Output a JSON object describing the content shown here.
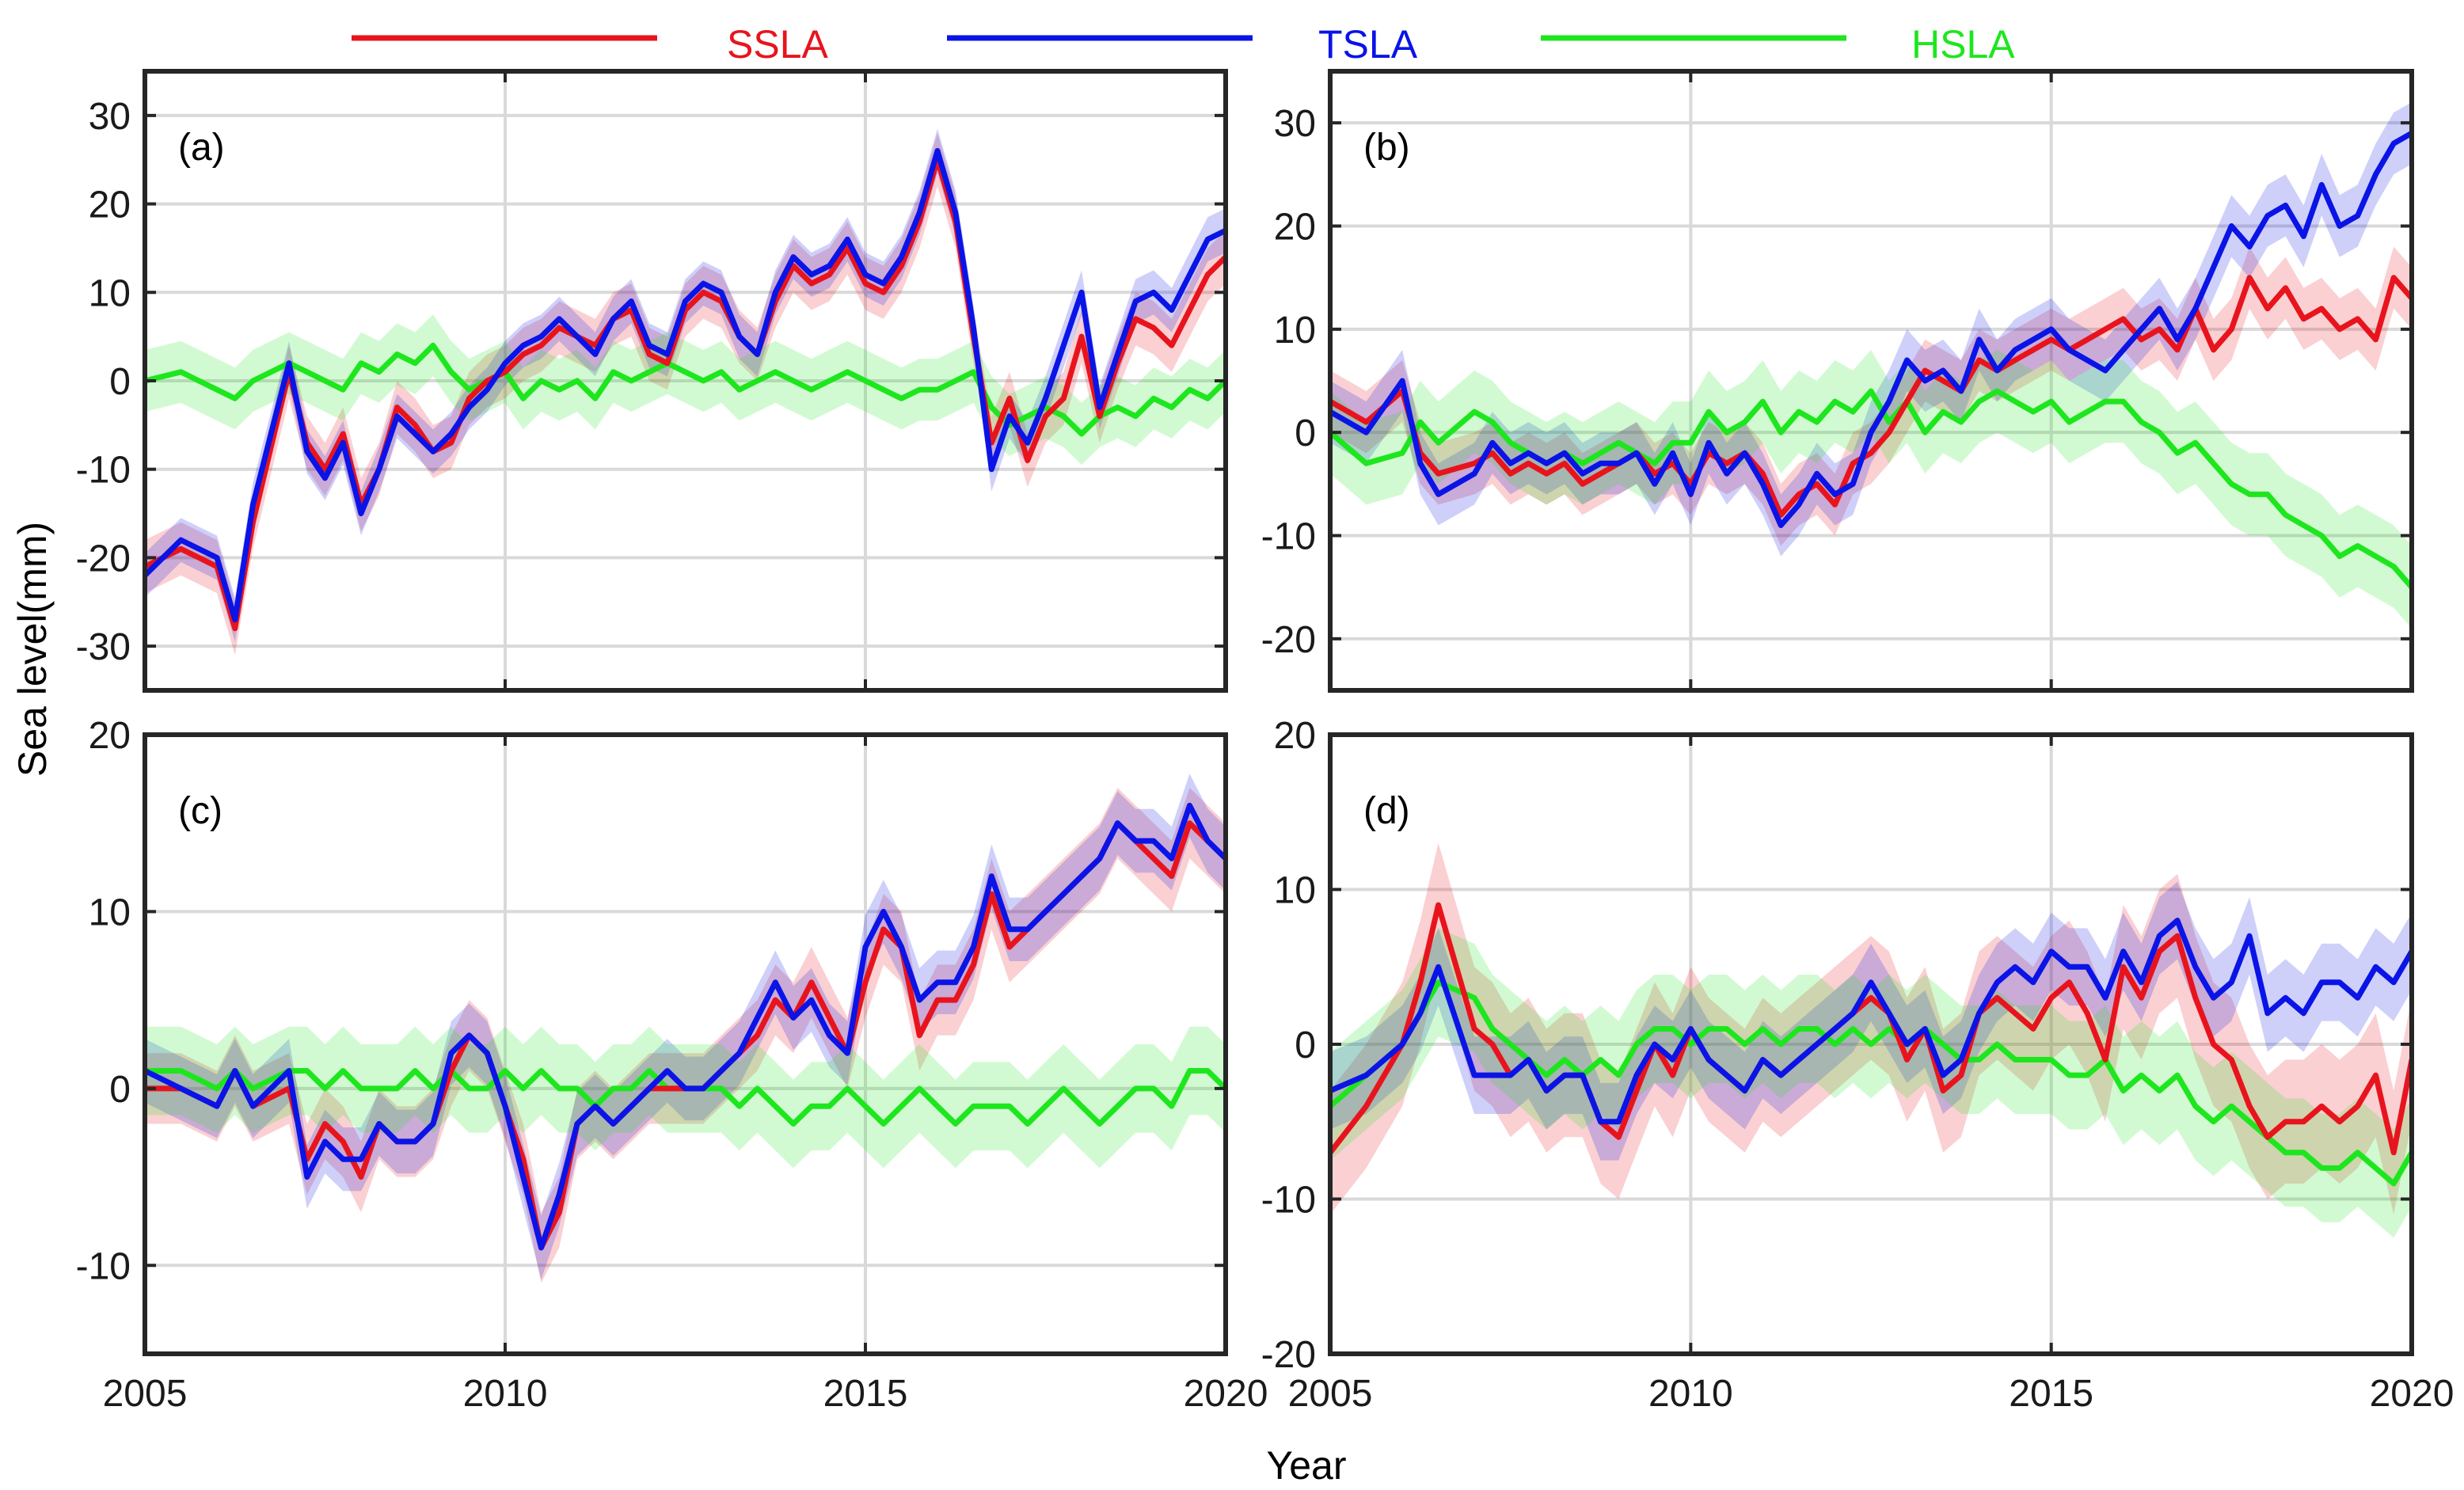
{
  "figure": {
    "xlabel": "Year",
    "ylabel": "Sea level(mm)"
  },
  "legend": [
    {
      "key": "SSLA",
      "label": "SSLA",
      "color": "#e8141d"
    },
    {
      "key": "TSLA",
      "label": "TSLA",
      "color": "#0a14e6"
    },
    {
      "key": "HSLA",
      "label": "HSLA",
      "color": "#1ee61e"
    }
  ],
  "chart_data": [
    {
      "type": "line",
      "panel": "(a)",
      "xlim": [
        2005,
        2020
      ],
      "ylim": [
        -35,
        35
      ],
      "xticks": [
        2005,
        2010,
        2015,
        2020
      ],
      "yticks": [
        -30,
        -20,
        -10,
        0,
        10,
        20,
        30
      ],
      "x": [
        2005.0,
        2005.5,
        2006.0,
        2006.25,
        2006.5,
        2007.0,
        2007.25,
        2007.5,
        2007.75,
        2008.0,
        2008.25,
        2008.5,
        2008.75,
        2009.0,
        2009.25,
        2009.5,
        2009.75,
        2010.0,
        2010.25,
        2010.5,
        2010.75,
        2011.0,
        2011.25,
        2011.5,
        2011.75,
        2012.0,
        2012.25,
        2012.5,
        2012.75,
        2013.0,
        2013.25,
        2013.5,
        2013.75,
        2014.0,
        2014.25,
        2014.5,
        2014.75,
        2015.0,
        2015.25,
        2015.5,
        2015.75,
        2016.0,
        2016.25,
        2016.5,
        2016.75,
        2017.0,
        2017.25,
        2017.5,
        2017.75,
        2018.0,
        2018.25,
        2018.5,
        2018.75,
        2019.0,
        2019.25,
        2019.5,
        2019.75,
        2020.0
      ],
      "series": [
        {
          "key": "SSLA",
          "name": "SSLA",
          "band": 3.0,
          "values": [
            -21,
            -19,
            -21,
            -28,
            -16,
            1,
            -7,
            -10,
            -6,
            -14,
            -10,
            -3,
            -5,
            -8,
            -7,
            -2,
            0,
            1,
            3,
            4,
            6,
            5,
            4,
            7,
            8,
            3,
            2,
            8,
            10,
            9,
            5,
            3,
            9,
            13,
            11,
            12,
            15,
            11,
            10,
            13,
            18,
            25,
            18,
            5,
            -7,
            -2,
            -9,
            -4,
            -2,
            5,
            -4,
            2,
            7,
            6,
            4,
            8,
            12,
            14
          ]
        },
        {
          "key": "TSLA",
          "name": "TSLA",
          "band": 2.5,
          "values": [
            -22,
            -18,
            -20,
            -27,
            -14,
            2,
            -8,
            -11,
            -7,
            -15,
            -10,
            -4,
            -6,
            -8,
            -6,
            -3,
            -1,
            2,
            4,
            5,
            7,
            5,
            3,
            7,
            9,
            4,
            3,
            9,
            11,
            10,
            5,
            3,
            10,
            14,
            12,
            13,
            16,
            12,
            11,
            14,
            19,
            26,
            19,
            6,
            -10,
            -4,
            -7,
            -2,
            4,
            10,
            -3,
            3,
            9,
            10,
            8,
            12,
            16,
            17
          ]
        },
        {
          "key": "HSLA",
          "name": "HSLA",
          "band": 3.5,
          "values": [
            0,
            1,
            -1,
            -2,
            0,
            2,
            1,
            0,
            -1,
            2,
            1,
            3,
            2,
            4,
            1,
            -1,
            0,
            1,
            -2,
            0,
            -1,
            0,
            -2,
            1,
            0,
            1,
            2,
            1,
            0,
            1,
            -1,
            0,
            1,
            0,
            -1,
            0,
            1,
            0,
            -1,
            -2,
            -1,
            -1,
            0,
            1,
            -3,
            -5,
            -4,
            -3,
            -4,
            -6,
            -4,
            -3,
            -4,
            -2,
            -3,
            -1,
            -2,
            0
          ]
        }
      ]
    },
    {
      "type": "line",
      "panel": "(b)",
      "xlim": [
        2005,
        2020
      ],
      "ylim": [
        -25,
        35
      ],
      "xticks": [
        2005,
        2010,
        2015,
        2020
      ],
      "yticks": [
        -20,
        -10,
        0,
        10,
        20,
        30
      ],
      "x": [
        2005.0,
        2005.5,
        2006.0,
        2006.25,
        2006.5,
        2007.0,
        2007.25,
        2007.5,
        2007.75,
        2008.0,
        2008.25,
        2008.5,
        2008.75,
        2009.0,
        2009.25,
        2009.5,
        2009.75,
        2010.0,
        2010.25,
        2010.5,
        2010.75,
        2011.0,
        2011.25,
        2011.5,
        2011.75,
        2012.0,
        2012.25,
        2012.5,
        2012.75,
        2013.0,
        2013.25,
        2013.5,
        2013.75,
        2014.0,
        2014.25,
        2014.5,
        2014.75,
        2015.0,
        2015.25,
        2015.5,
        2015.75,
        2016.0,
        2016.25,
        2016.5,
        2016.75,
        2017.0,
        2017.25,
        2017.5,
        2017.75,
        2018.0,
        2018.25,
        2018.5,
        2018.75,
        2019.0,
        2019.25,
        2019.5,
        2019.75,
        2020.0
      ],
      "series": [
        {
          "key": "SSLA",
          "name": "SSLA",
          "band": 3.0,
          "values": [
            3,
            1,
            4,
            -2,
            -4,
            -3,
            -2,
            -4,
            -3,
            -4,
            -3,
            -5,
            -4,
            -3,
            -2,
            -4,
            -3,
            -5,
            -2,
            -3,
            -2,
            -4,
            -8,
            -6,
            -5,
            -7,
            -3,
            -2,
            0,
            3,
            6,
            5,
            4,
            7,
            6,
            7,
            8,
            9,
            8,
            9,
            10,
            11,
            9,
            10,
            8,
            12,
            8,
            10,
            15,
            12,
            14,
            11,
            12,
            10,
            11,
            9,
            15,
            13
          ]
        },
        {
          "key": "TSLA",
          "name": "TSLA",
          "band": 3.0,
          "values": [
            2,
            0,
            5,
            -3,
            -6,
            -4,
            -1,
            -3,
            -2,
            -3,
            -2,
            -4,
            -3,
            -3,
            -2,
            -5,
            -2,
            -6,
            -1,
            -4,
            -2,
            -5,
            -9,
            -7,
            -4,
            -6,
            -5,
            0,
            3,
            7,
            5,
            6,
            4,
            9,
            6,
            8,
            9,
            10,
            8,
            7,
            6,
            8,
            10,
            12,
            9,
            12,
            16,
            20,
            18,
            21,
            22,
            19,
            24,
            20,
            21,
            25,
            28,
            29
          ]
        },
        {
          "key": "HSLA",
          "name": "HSLA",
          "band": 4.0,
          "values": [
            0,
            -3,
            -2,
            1,
            -1,
            2,
            1,
            -1,
            -2,
            -3,
            -2,
            -3,
            -2,
            -1,
            -2,
            -3,
            -1,
            -1,
            2,
            0,
            1,
            3,
            0,
            2,
            1,
            3,
            2,
            4,
            1,
            3,
            0,
            2,
            1,
            3,
            4,
            3,
            2,
            3,
            1,
            2,
            3,
            3,
            1,
            0,
            -2,
            -1,
            -3,
            -5,
            -6,
            -6,
            -8,
            -9,
            -10,
            -12,
            -11,
            -12,
            -13,
            -15
          ]
        }
      ]
    },
    {
      "type": "line",
      "panel": "(c)",
      "xlim": [
        2005,
        2020
      ],
      "ylim": [
        -15,
        20
      ],
      "xticks": [
        2005,
        2010,
        2015,
        2020
      ],
      "yticks": [
        -10,
        0,
        10,
        20
      ],
      "x": [
        2005.0,
        2005.5,
        2006.0,
        2006.25,
        2006.5,
        2007.0,
        2007.25,
        2007.5,
        2007.75,
        2008.0,
        2008.25,
        2008.5,
        2008.75,
        2009.0,
        2009.25,
        2009.5,
        2009.75,
        2010.0,
        2010.25,
        2010.5,
        2010.75,
        2011.0,
        2011.25,
        2011.5,
        2011.75,
        2012.0,
        2012.25,
        2012.5,
        2012.75,
        2013.0,
        2013.25,
        2013.5,
        2013.75,
        2014.0,
        2014.25,
        2014.5,
        2014.75,
        2015.0,
        2015.25,
        2015.5,
        2015.75,
        2016.0,
        2016.25,
        2016.5,
        2016.75,
        2017.0,
        2017.25,
        2017.5,
        2017.75,
        2018.0,
        2018.25,
        2018.5,
        2018.75,
        2019.0,
        2019.25,
        2019.5,
        2019.75,
        2020.0
      ],
      "series": [
        {
          "key": "SSLA",
          "name": "SSLA",
          "band": 2.0,
          "values": [
            0,
            0,
            -1,
            1,
            -1,
            0,
            -4,
            -2,
            -3,
            -5,
            -2,
            -3,
            -3,
            -2,
            1,
            3,
            2,
            -1,
            -4,
            -9,
            -7,
            -2,
            -1,
            -2,
            -1,
            0,
            0,
            0,
            0,
            1,
            2,
            3,
            5,
            4,
            6,
            4,
            2,
            6,
            9,
            8,
            3,
            5,
            5,
            7,
            11,
            8,
            9,
            10,
            11,
            12,
            13,
            15,
            14,
            13,
            12,
            15,
            14,
            13
          ]
        },
        {
          "key": "TSLA",
          "name": "TSLA",
          "band": 1.8,
          "values": [
            1,
            0,
            -1,
            1,
            -1,
            1,
            -5,
            -3,
            -4,
            -4,
            -2,
            -3,
            -3,
            -2,
            2,
            3,
            2,
            -1,
            -5,
            -9,
            -6,
            -2,
            -1,
            -2,
            -1,
            0,
            1,
            0,
            0,
            1,
            2,
            4,
            6,
            4,
            5,
            3,
            2,
            8,
            10,
            8,
            5,
            6,
            6,
            8,
            12,
            9,
            9,
            10,
            11,
            12,
            13,
            15,
            14,
            14,
            13,
            16,
            14,
            13
          ]
        },
        {
          "key": "HSLA",
          "name": "HSLA",
          "band": 2.5,
          "values": [
            1,
            1,
            0,
            1,
            0,
            1,
            1,
            0,
            1,
            0,
            0,
            0,
            1,
            0,
            1,
            0,
            0,
            1,
            0,
            1,
            0,
            0,
            -1,
            0,
            0,
            1,
            0,
            0,
            0,
            0,
            -1,
            0,
            -1,
            -2,
            -1,
            -1,
            0,
            -1,
            -2,
            -1,
            0,
            -1,
            -2,
            -1,
            -1,
            -1,
            -2,
            -1,
            0,
            -1,
            -2,
            -1,
            0,
            0,
            -1,
            1,
            1,
            0
          ]
        }
      ]
    },
    {
      "type": "line",
      "panel": "(d)",
      "xlim": [
        2005,
        2020
      ],
      "ylim": [
        -20,
        20
      ],
      "xticks": [
        2005,
        2010,
        2015,
        2020
      ],
      "yticks": [
        -20,
        -10,
        0,
        10,
        20
      ],
      "x": [
        2005.0,
        2005.5,
        2006.0,
        2006.25,
        2006.5,
        2007.0,
        2007.25,
        2007.5,
        2007.75,
        2008.0,
        2008.25,
        2008.5,
        2008.75,
        2009.0,
        2009.25,
        2009.5,
        2009.75,
        2010.0,
        2010.25,
        2010.5,
        2010.75,
        2011.0,
        2011.25,
        2011.5,
        2011.75,
        2012.0,
        2012.25,
        2012.5,
        2012.75,
        2013.0,
        2013.25,
        2013.5,
        2013.75,
        2014.0,
        2014.25,
        2014.5,
        2014.75,
        2015.0,
        2015.25,
        2015.5,
        2015.75,
        2016.0,
        2016.25,
        2016.5,
        2016.75,
        2017.0,
        2017.25,
        2017.5,
        2017.75,
        2018.0,
        2018.25,
        2018.5,
        2018.75,
        2019.0,
        2019.25,
        2019.5,
        2019.75,
        2020.0
      ],
      "series": [
        {
          "key": "SSLA",
          "name": "SSLA",
          "band": 4.0,
          "values": [
            -7,
            -4,
            0,
            4,
            9,
            1,
            0,
            -2,
            -1,
            -3,
            -2,
            -2,
            -5,
            -6,
            -3,
            0,
            -2,
            1,
            -1,
            -2,
            -3,
            -1,
            -2,
            -1,
            0,
            1,
            2,
            3,
            2,
            -1,
            1,
            -3,
            -2,
            2,
            3,
            2,
            1,
            3,
            4,
            2,
            -1,
            5,
            3,
            6,
            7,
            3,
            0,
            -1,
            -4,
            -6,
            -5,
            -5,
            -4,
            -5,
            -4,
            -2,
            -7,
            -1
          ]
        },
        {
          "key": "TSLA",
          "name": "TSLA",
          "band": 2.5,
          "values": [
            -3,
            -2,
            0,
            2,
            5,
            -2,
            -2,
            -2,
            -1,
            -3,
            -2,
            -2,
            -5,
            -5,
            -2,
            0,
            -1,
            1,
            -1,
            -2,
            -3,
            -1,
            -2,
            -1,
            0,
            1,
            2,
            4,
            2,
            0,
            1,
            -2,
            -1,
            2,
            4,
            5,
            4,
            6,
            5,
            5,
            3,
            6,
            4,
            7,
            8,
            5,
            3,
            4,
            7,
            2,
            3,
            2,
            4,
            4,
            3,
            5,
            4,
            6
          ]
        },
        {
          "key": "HSLA",
          "name": "HSLA",
          "band": 3.5,
          "values": [
            -4,
            -2,
            0,
            2,
            4,
            3,
            1,
            0,
            -1,
            -2,
            -1,
            -2,
            -1,
            -2,
            0,
            1,
            1,
            0,
            1,
            1,
            0,
            1,
            0,
            1,
            1,
            0,
            1,
            0,
            1,
            0,
            1,
            0,
            -1,
            -1,
            0,
            -1,
            -1,
            -1,
            -2,
            -2,
            -1,
            -3,
            -2,
            -3,
            -2,
            -4,
            -5,
            -4,
            -5,
            -6,
            -7,
            -7,
            -8,
            -8,
            -7,
            -8,
            -9,
            -7
          ]
        }
      ]
    }
  ]
}
